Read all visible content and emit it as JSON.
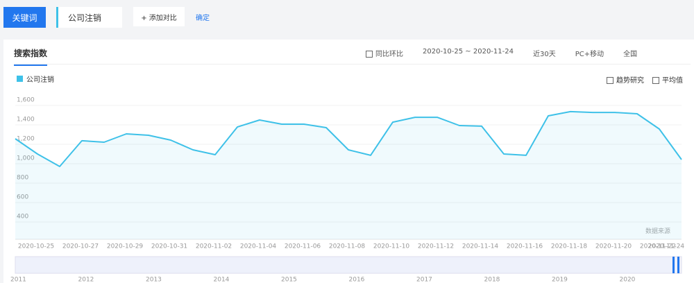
{
  "header": {
    "keyword_button": "关键词",
    "keyword": "公司注销",
    "add_compare": "+ 添加对比",
    "confirm": "确定"
  },
  "tab": "搜索指数",
  "controls": [
    "同比环比",
    "2020-10-25 ~ 2020-11-24",
    "近30天",
    "PC+移动",
    "全国"
  ],
  "options": [
    "趋势研究",
    "平均值"
  ],
  "watermark": "数据来源",
  "timeline": [
    "2011",
    "2012",
    "2013",
    "2014",
    "2015",
    "2016",
    "2017",
    "2018",
    "2019",
    "2020"
  ],
  "chart_data": {
    "type": "line",
    "categories": [
      "2020-10-25",
      null,
      "2020-10-27",
      null,
      "2020-10-29",
      null,
      "2020-10-31",
      null,
      "2020-11-02",
      null,
      "2020-11-04",
      null,
      "2020-11-06",
      null,
      "2020-11-08",
      null,
      "2020-11-10",
      null,
      "2020-11-12",
      null,
      "2020-11-14",
      null,
      "2020-11-16",
      null,
      "2020-11-18",
      null,
      "2020-11-20",
      null,
      "2020-11-22",
      null,
      "2020-11-24"
    ],
    "series": [
      {
        "name": "公司注销",
        "color": "#3ec1e8",
        "values": [
          1200,
          1043,
          914,
          1179,
          1164,
          1250,
          1236,
          1186,
          1086,
          1036,
          1321,
          1393,
          1350,
          1350,
          1314,
          1086,
          1029,
          1371,
          1421,
          1421,
          1336,
          1329,
          1043,
          1029,
          1436,
          1479,
          1471,
          1471,
          1457,
          1300,
          986
        ]
      }
    ],
    "ylim": [
      200,
      1700
    ],
    "yticks": [
      400,
      600,
      800,
      {
        "value": 1000,
        "label": "1,000"
      },
      {
        "value": 1200,
        "label": "1,200"
      },
      {
        "value": 1400,
        "label": "1,400"
      },
      {
        "value": 1600,
        "label": "1,600"
      }
    ],
    "grid": true
  }
}
